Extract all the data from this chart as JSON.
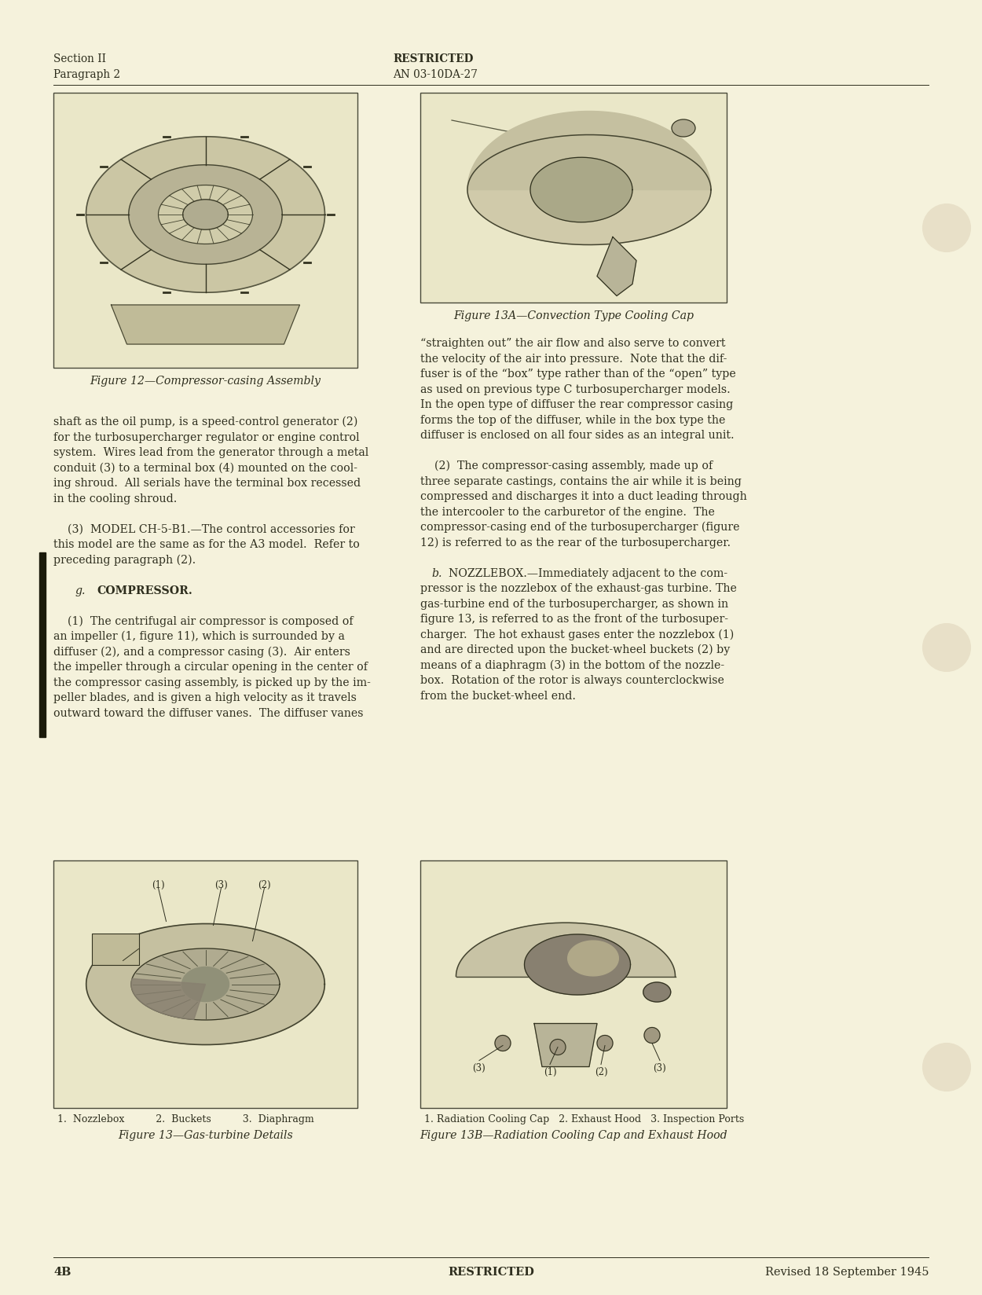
{
  "page_bg": "#F5F2DC",
  "text_color": "#2e2e1e",
  "border_color": "#4a4a3a",
  "header_left_line1": "Section II",
  "header_left_line2": "Paragraph 2",
  "header_center_line1": "RESTRICTED",
  "header_center_line2": "AN 03-10DA-27",
  "footer_left": "4B",
  "footer_center": "RESTRICTED",
  "footer_right": "Revised 18 September 1945",
  "fig12_caption": "Figure 12—Compressor-casing Assembly",
  "fig13_caption": "Figure 13—Gas-turbine Details",
  "fig13a_caption": "Figure 13A—Convection Type Cooling Cap",
  "fig13b_caption": "Figure 13B—Radiation Cooling Cap and Exhaust Hood",
  "fig13_sublabels": "1.  Nozzlebox          2.  Buckets          3.  Diaphragm",
  "fig13b_sublabels": "1. Radiation Cooling Cap   2. Exhaust Hood   3. Inspection Ports",
  "left_col_text": [
    "shaft as the oil pump, is a speed-control generator (2)",
    "for the turbosupercharger regulator or engine control",
    "system.  Wires lead from the generator through a metal",
    "conduit (3) to a terminal box (4) mounted on the cool-",
    "ing shroud.  All serials have the terminal box recessed",
    "in the cooling shroud.",
    "",
    "    (3)  MODEL CH-5-B1.—The control accessories for",
    "this model are the same as for the A3 model.  Refer to",
    "preceding paragraph (2).",
    "",
    "    g.  COMPRESSOR.",
    "",
    "    (1)  The centrifugal air compressor is composed of",
    "an impeller (1, figure 11), which is surrounded by a",
    "diffuser (2), and a compressor casing (3).  Air enters",
    "the impeller through a circular opening in the center of",
    "the compressor casing assembly, is picked up by the im-",
    "peller blades, and is given a high velocity as it travels",
    "outward toward the diffuser vanes.  The diffuser vanes"
  ],
  "right_col_text": [
    "“straighten out” the air flow and also serve to convert",
    "the velocity of the air into pressure.  Note that the dif-",
    "fuser is of the “box” type rather than of the “open” type",
    "as used on previous type C turbosupercharger models.",
    "In the open type of diffuser the rear compressor casing",
    "forms the top of the diffuser, while in the box type the",
    "diffuser is enclosed on all four sides as an integral unit.",
    "",
    "    (2)  The compressor-casing assembly, made up of",
    "three separate castings, contains the air while it is being",
    "compressed and discharges it into a duct leading through",
    "the intercooler to the carburetor of the engine.  The",
    "compressor-casing end of the turbosupercharger (figure",
    "12) is referred to as the rear of the turbosupercharger.",
    "",
    "    b.  NOZZLEBOX.—Immediately adjacent to the com-",
    "pressor is the nozzlebox of the exhaust-gas turbine. The",
    "gas-turbine end of the turbosupercharger, as shown in",
    "figure 13, is referred to as the front of the turbosuper-",
    "charger.  The hot exhaust gases enter the nozzlebox (1)",
    "and are directed upon the bucket-wheel buckets (2) by",
    "means of a diaphragm (3) in the bottom of the nozzle-",
    "box.  Rotation of the rotor is always counterclockwise",
    "from the bucket-wheel end."
  ],
  "font_size_body": 10.2,
  "font_size_header": 9.8,
  "font_size_footer": 10.5,
  "font_size_caption_italic": 10.2,
  "font_size_sublabel": 9.0
}
